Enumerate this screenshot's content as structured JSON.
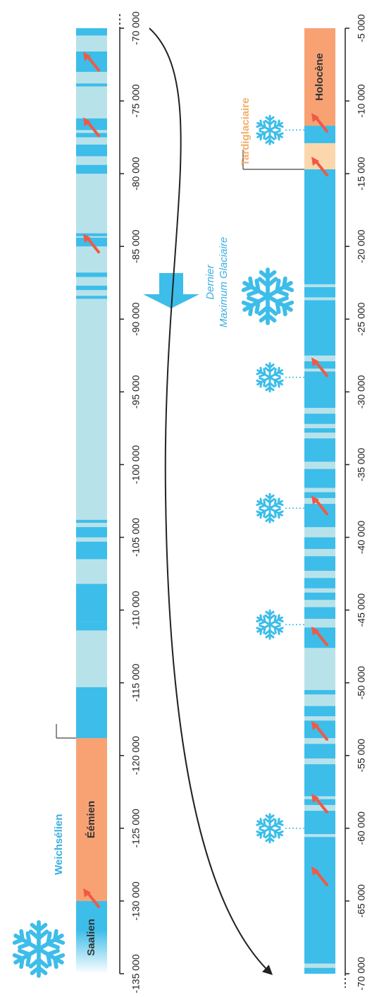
{
  "colors": {
    "cold": "#3dbde9",
    "mild": "#b8e2ea",
    "warm": "#f8a274",
    "latewarm": "#fcd7ae",
    "text_blue": "#3aaee0",
    "text_orange": "#f3ae68",
    "arrow_red": "#f05a45",
    "axis": "#222222"
  },
  "top_track": {
    "axis_min": -135000,
    "axis_max": -70000,
    "tick_values": [
      -135000,
      -130000,
      -125000,
      -120000,
      -115000,
      -110000,
      -105000,
      -100000,
      -95000,
      -90000,
      -85000,
      -80000,
      -75000,
      -70000
    ],
    "tick_labels": [
      "-135 000",
      "-130 000",
      "-125 000",
      "-120 000",
      "-115 000",
      "-110 000",
      "-105 000",
      "-100 000",
      "-95 000",
      "-90 000",
      "-85 000",
      "-80 000",
      "-75 000",
      "-70 000"
    ],
    "segments": [
      {
        "from": -135000,
        "to": -130000,
        "c": "grad"
      },
      {
        "from": -130000,
        "to": -118800,
        "c": "warm"
      },
      {
        "from": -118800,
        "to": -115300,
        "c": "cold"
      },
      {
        "from": -115300,
        "to": -111400,
        "c": "mild"
      },
      {
        "from": -111400,
        "to": -110800,
        "c": "cold"
      },
      {
        "from": -110800,
        "to": -108200,
        "c": "cold"
      },
      {
        "from": -106500,
        "to": -105300,
        "c": "cold"
      },
      {
        "from": -105000,
        "to": -104300,
        "c": "cold"
      },
      {
        "from": -104000,
        "to": -103800,
        "c": "cold"
      },
      {
        "from": -88600,
        "to": -88400,
        "c": "cold"
      },
      {
        "from": -88000,
        "to": -87700,
        "c": "cold"
      },
      {
        "from": -87100,
        "to": -86800,
        "c": "cold"
      },
      {
        "from": -85000,
        "to": -84400,
        "c": "cold"
      },
      {
        "from": -84300,
        "to": -84100,
        "c": "cold"
      },
      {
        "from": -80000,
        "to": -79400,
        "c": "cold"
      },
      {
        "from": -78800,
        "to": -78000,
        "c": "cold"
      },
      {
        "from": -77500,
        "to": -77200,
        "c": "cold"
      },
      {
        "from": -77000,
        "to": -76200,
        "c": "cold"
      },
      {
        "from": -74000,
        "to": -73800,
        "c": "cold"
      },
      {
        "from": -73000,
        "to": -71600,
        "c": "cold"
      },
      {
        "from": -70500,
        "to": -70000,
        "c": "cold"
      }
    ],
    "arrows": [
      -130000,
      -85000,
      -77000,
      -72500
    ],
    "labels": [
      {
        "key": "saalien",
        "text": "Saalien",
        "from": -135000,
        "to": -130000
      },
      {
        "key": "eemien",
        "text": "Éémien",
        "from": -130000,
        "to": -118800
      }
    ],
    "weichselien": {
      "text": "Weichsélien",
      "at": -118800
    }
  },
  "bottom_track": {
    "axis_min": -70000,
    "axis_max": -5000,
    "tick_values": [
      -70000,
      -65000,
      -60000,
      -55000,
      -50000,
      -45000,
      -40000,
      -35000,
      -30000,
      -25000,
      -20000,
      -15000,
      -10000,
      -5000
    ],
    "tick_labels": [
      "-70 000",
      "-65 000",
      "-60 000",
      "-55 000",
      "-50 000",
      "-45 000",
      "-40 000",
      "-35 000",
      "-30 000",
      "-25 000",
      "-20 000",
      "-15 000",
      "-10 000",
      "-5 000"
    ],
    "segments": [
      {
        "from": -70000,
        "to": -69600,
        "c": "cold"
      },
      {
        "from": -69300,
        "to": -60600,
        "c": "cold"
      },
      {
        "from": -60400,
        "to": -58800,
        "c": "cold"
      },
      {
        "from": -58400,
        "to": -58000,
        "c": "cold"
      },
      {
        "from": -57800,
        "to": -55600,
        "c": "cold"
      },
      {
        "from": -55200,
        "to": -54200,
        "c": "cold"
      },
      {
        "from": -53800,
        "to": -52600,
        "c": "cold"
      },
      {
        "from": -52300,
        "to": -51600,
        "c": "cold"
      },
      {
        "from": -50800,
        "to": -50500,
        "c": "cold"
      },
      {
        "from": -47600,
        "to": -46200,
        "c": "cold"
      },
      {
        "from": -45600,
        "to": -44800,
        "c": "cold"
      },
      {
        "from": -44300,
        "to": -43800,
        "c": "cold"
      },
      {
        "from": -43500,
        "to": -42800,
        "c": "cold"
      },
      {
        "from": -42300,
        "to": -41300,
        "c": "cold"
      },
      {
        "from": -40800,
        "to": -40000,
        "c": "cold"
      },
      {
        "from": -39300,
        "to": -37700,
        "c": "cold"
      },
      {
        "from": -37300,
        "to": -36900,
        "c": "cold"
      },
      {
        "from": -36600,
        "to": -35300,
        "c": "cold"
      },
      {
        "from": -34800,
        "to": -33200,
        "c": "cold"
      },
      {
        "from": -32800,
        "to": -32500,
        "c": "cold"
      },
      {
        "from": -32200,
        "to": -31500,
        "c": "cold"
      },
      {
        "from": -31100,
        "to": -28600,
        "c": "cold"
      },
      {
        "from": -28400,
        "to": -27900,
        "c": "cold"
      },
      {
        "from": -27500,
        "to": -23700,
        "c": "cold"
      },
      {
        "from": -23500,
        "to": -22800,
        "c": "cold"
      },
      {
        "from": -22600,
        "to": -14700,
        "c": "cold"
      },
      {
        "from": -14700,
        "to": -12900,
        "c": "latewarm"
      },
      {
        "from": -12900,
        "to": -11700,
        "c": "cold"
      },
      {
        "from": -11700,
        "to": -5000,
        "c": "warm"
      }
    ],
    "arrows": [
      -63500,
      -58500,
      -53500,
      -47000,
      -38000,
      -28500,
      -14700,
      -11700
    ],
    "labels": [
      {
        "key": "holocene",
        "text": "Holocène",
        "from": -11700,
        "to": -5000
      }
    ],
    "tardiglaciaire": {
      "text": "Tardiglaciaire",
      "at": -14700
    },
    "snowflakes": [
      -60000,
      -46000,
      -38000,
      -29000,
      -12000
    ],
    "dmg": {
      "line1": "Dernier",
      "line2": "Maximum Glaciaire"
    }
  }
}
